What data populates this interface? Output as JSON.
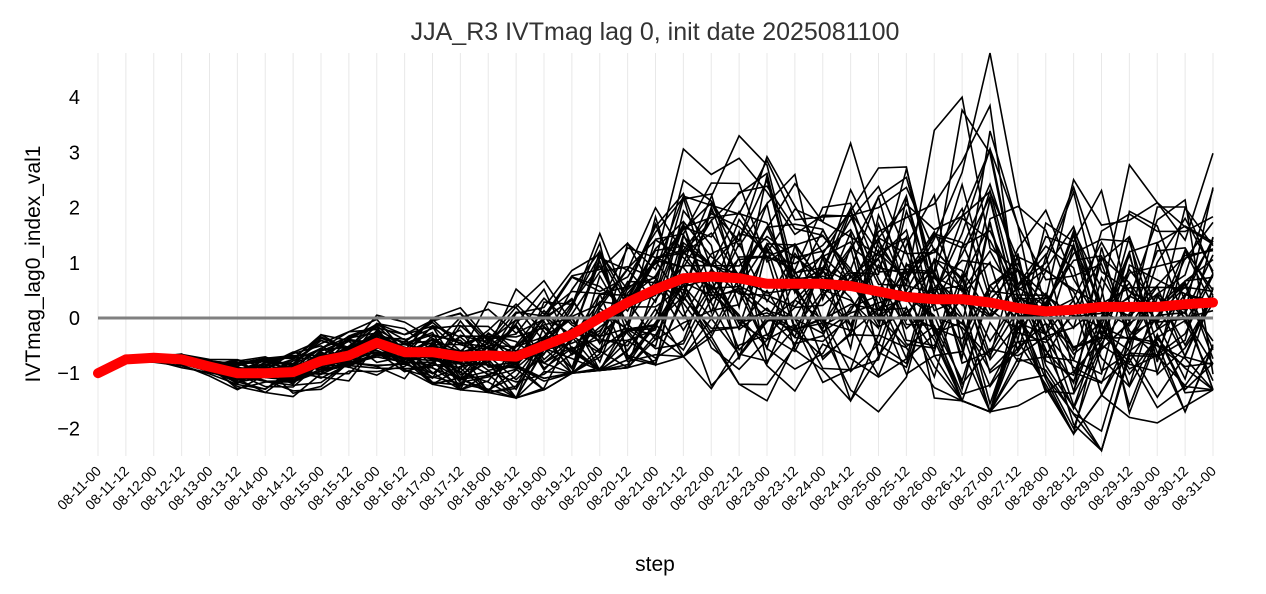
{
  "chart_data": {
    "type": "line",
    "title": "JJA_R3 IVTmag lag 0, init date 2025081100",
    "xlabel": "step",
    "ylabel": "IVTmag_lag0_index_val1",
    "ylim": [
      -2.5,
      4.8
    ],
    "yticks": [
      -2,
      -1,
      0,
      1,
      2,
      3,
      4
    ],
    "x": [
      "08-11-00",
      "08-11-12",
      "08-12-00",
      "08-12-12",
      "08-13-00",
      "08-13-12",
      "08-14-00",
      "08-14-12",
      "08-15-00",
      "08-15-12",
      "08-16-00",
      "08-16-12",
      "08-17-00",
      "08-17-12",
      "08-18-00",
      "08-18-12",
      "08-19-00",
      "08-19-12",
      "08-20-00",
      "08-20-12",
      "08-21-00",
      "08-21-12",
      "08-22-00",
      "08-22-12",
      "08-23-00",
      "08-23-12",
      "08-24-00",
      "08-24-12",
      "08-25-00",
      "08-25-12",
      "08-26-00",
      "08-26-12",
      "08-27-00",
      "08-27-12",
      "08-28-00",
      "08-28-12",
      "08-29-00",
      "08-29-12",
      "08-30-00",
      "08-30-12",
      "08-31-00"
    ],
    "reference_line": {
      "y": 0,
      "color": "#808080"
    },
    "grid": "vertical",
    "series": [
      {
        "role": "ensemble-mean",
        "color": "#ff0000",
        "values": [
          -1.0,
          -0.75,
          -0.72,
          -0.75,
          -0.88,
          -1.0,
          -1.0,
          -0.98,
          -0.78,
          -0.68,
          -0.45,
          -0.62,
          -0.62,
          -0.7,
          -0.68,
          -0.7,
          -0.5,
          -0.3,
          0.0,
          0.28,
          0.52,
          0.72,
          0.75,
          0.72,
          0.62,
          0.62,
          0.62,
          0.58,
          0.48,
          0.38,
          0.34,
          0.34,
          0.28,
          0.18,
          0.12,
          0.15,
          0.2,
          0.2,
          0.2,
          0.25,
          0.28
        ]
      }
    ],
    "ensemble": {
      "color": "#000000",
      "members": 51,
      "spread_low": [
        -1.0,
        -0.82,
        -0.8,
        -0.9,
        -1.05,
        -1.35,
        -1.35,
        -1.5,
        -1.4,
        -1.2,
        -1.05,
        -1.1,
        -1.2,
        -1.3,
        -1.35,
        -1.45,
        -1.3,
        -1.0,
        -0.95,
        -0.9,
        -0.85,
        -0.7,
        -1.3,
        -1.2,
        -1.5,
        -1.4,
        -1.6,
        -1.5,
        -1.7,
        -1.5,
        -1.6,
        -1.5,
        -1.7,
        -1.75,
        -1.6,
        -2.1,
        -2.4,
        -1.8,
        -1.9,
        -1.7,
        -1.3
      ],
      "spread_high": [
        -1.0,
        -0.68,
        -0.65,
        -0.65,
        -0.75,
        -0.7,
        -0.55,
        -0.45,
        -0.25,
        -0.25,
        0.05,
        0.0,
        0.3,
        0.45,
        0.5,
        0.65,
        0.8,
        1.3,
        2.3,
        2.3,
        2.6,
        3.2,
        2.6,
        3.3,
        3.3,
        2.6,
        3.0,
        3.35,
        3.1,
        3.3,
        3.4,
        4.5,
        4.8,
        2.7,
        2.5,
        3.2,
        3.6,
        3.5,
        3.0,
        2.8,
        3.35
      ]
    }
  }
}
